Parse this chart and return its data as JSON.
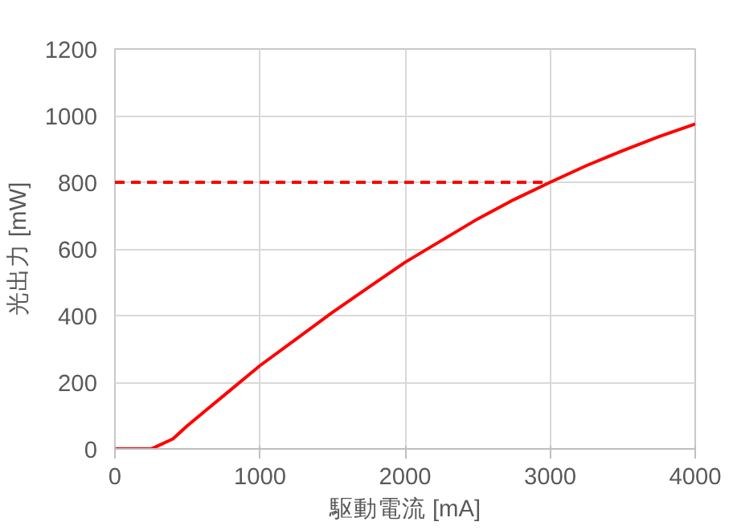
{
  "chart_data": {
    "type": "line",
    "xlabel": "駆動電流 [mA]",
    "ylabel": "光出力 [mW]",
    "x": [
      0,
      250,
      300,
      400,
      500,
      750,
      1000,
      1250,
      1500,
      1750,
      2000,
      2250,
      2500,
      2750,
      3000,
      3250,
      3500,
      3750,
      4000
    ],
    "series": [
      {
        "color": "#ff0000",
        "values": [
          0,
          0,
          10,
          30,
          70,
          160,
          250,
          330,
          410,
          485,
          560,
          625,
          690,
          748,
          800,
          850,
          895,
          937,
          975
        ],
        "line_style": "solid"
      },
      {
        "color": "#ff0000",
        "x": [
          0,
          3000
        ],
        "values": [
          800,
          800
        ],
        "line_style": "dashed"
      }
    ],
    "xlim": [
      0,
      4000
    ],
    "xticks": [
      0,
      1000,
      2000,
      3000,
      4000
    ],
    "ylim": [
      0,
      1200
    ],
    "yticks": [
      0,
      200,
      400,
      600,
      800,
      1000,
      1200
    ],
    "grid": true,
    "marker": "none"
  }
}
